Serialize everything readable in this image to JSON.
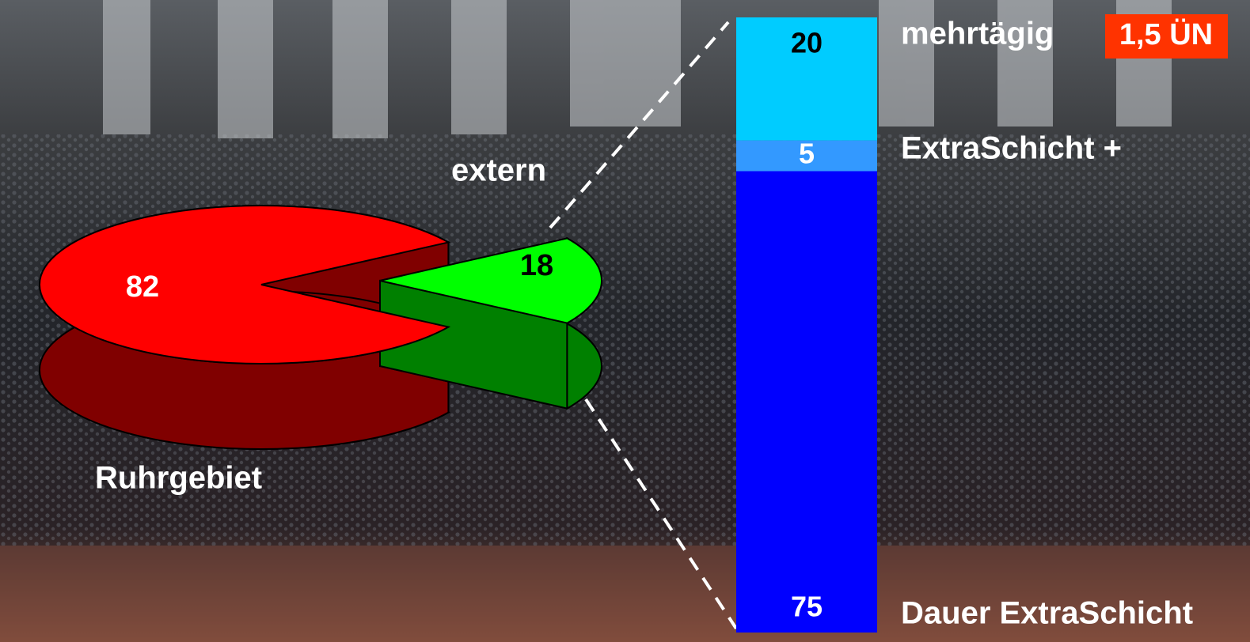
{
  "chart_data": [
    {
      "type": "pie",
      "categories": [
        "Ruhrgebiet",
        "extern"
      ],
      "values": [
        82,
        18
      ],
      "colors": [
        "#ff0000",
        "#00ff00"
      ],
      "side_colors": [
        "#800000",
        "#008000"
      ]
    },
    {
      "type": "stacked_bar",
      "series": [
        {
          "name": "Dauer ExtraSchicht",
          "color": "#0000ff",
          "values": [
            75
          ]
        },
        {
          "name": "ExtraSchicht +",
          "color": "#3399ff",
          "values": [
            5
          ]
        },
        {
          "name": "mehrtägig",
          "color": "#00ccff",
          "values": [
            20
          ]
        }
      ],
      "annotation": "1,5 ÜN"
    }
  ]
}
